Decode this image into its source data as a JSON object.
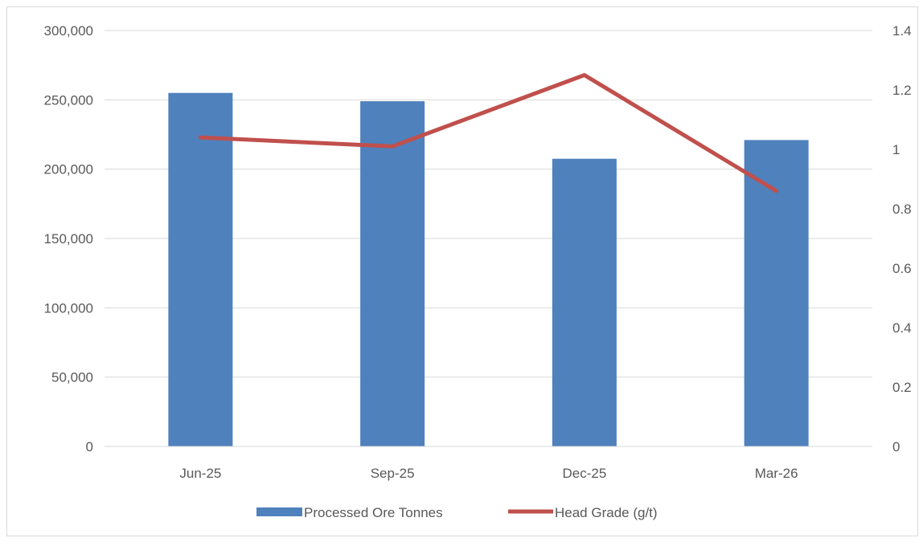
{
  "chart_data": {
    "type": "bar",
    "categories": [
      "Jun-25",
      "Sep-25",
      "Dec-25",
      "Mar-26"
    ],
    "series": [
      {
        "name": "Processed Ore Tonnes",
        "type": "bar",
        "axis": "left",
        "values": [
          255000,
          249000,
          207500,
          221000
        ],
        "color": "#4f81bd"
      },
      {
        "name": "Head Grade (g/t)",
        "type": "line",
        "axis": "right",
        "values": [
          1.04,
          1.01,
          1.25,
          0.86
        ],
        "color": "#c0504d"
      }
    ],
    "left_axis": {
      "ylim": [
        0,
        300000
      ],
      "ticks": [
        0,
        50000,
        100000,
        150000,
        200000,
        250000,
        300000
      ],
      "tick_labels": [
        "0",
        "50,000",
        "100,000",
        "150,000",
        "200,000",
        "250,000",
        "300,000"
      ]
    },
    "right_axis": {
      "ylim": [
        0,
        1.4
      ],
      "ticks": [
        0,
        0.2,
        0.4,
        0.6,
        0.8,
        1,
        1.2,
        1.4
      ],
      "tick_labels": [
        "0",
        "0.2",
        "0.4",
        "0.6",
        "0.8",
        "1",
        "1.2",
        "1.4"
      ]
    },
    "grid": true,
    "legend_position": "bottom",
    "title": "",
    "xlabel": "",
    "ylabel": ""
  }
}
